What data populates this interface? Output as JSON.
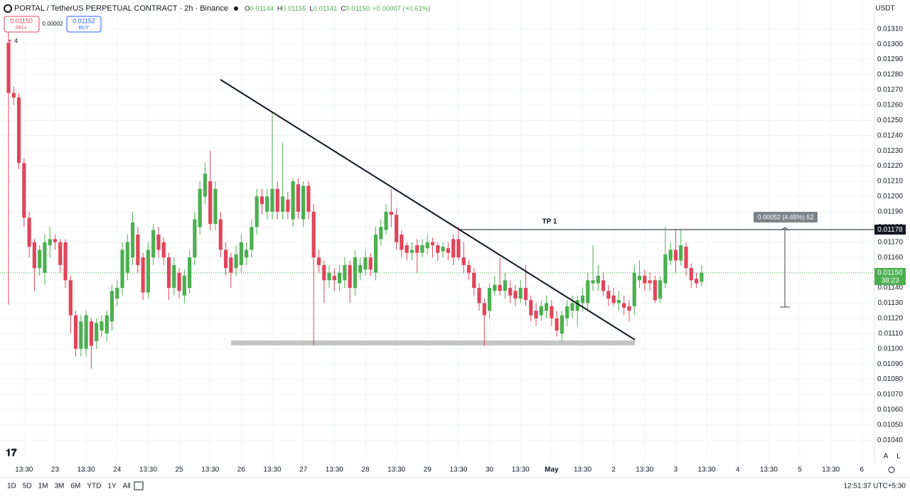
{
  "header": {
    "ohlc": [
      {
        "k": "O",
        "v": "0.01144"
      },
      {
        "k": "H",
        "v": "0.01155"
      },
      {
        "k": "L",
        "v": "0.01141"
      },
      {
        "k": "C",
        "v": "0.01150"
      }
    ],
    "change": "+0.00007 (+0.61%)",
    "sell_price": "0.01150",
    "sell": "SELL",
    "spread": "0.00002",
    "buy_price": "0.01152",
    "buy": "BUY",
    "indicator_count": "4",
    "currency": "USDT"
  },
  "toolbar": {
    "ranges": [
      "1D",
      "5D",
      "1M",
      "3M",
      "6M",
      "YTD",
      "1Y",
      "All"
    ],
    "clock": "12:51:37 UTC+5:30",
    "auto": "A",
    "log": "L"
  },
  "annotations": {
    "tp_label": "TP 1",
    "measure_label": "0.00052 (4.65%) 52",
    "tp_price": "0.01178",
    "last_price": "0.01150",
    "countdown": "38:23"
  },
  "chart_data": {
    "type": "candlestick",
    "title": "PORTAL / TetherUS PERPETUAL CONTRACT · 2h · Binance",
    "up_color": "#4caf50",
    "down_color": "#e0455a",
    "grid": true,
    "xlim": [
      -1.65,
      166.74
    ],
    "ylim": [
      0.01028,
      0.01329
    ],
    "yticks": [
      {
        "value": 0.0104,
        "label": "0.01040"
      },
      {
        "value": 0.0105,
        "label": "0.01050"
      },
      {
        "value": 0.0106,
        "label": "0.01060"
      },
      {
        "value": 0.0107,
        "label": "0.01070"
      },
      {
        "value": 0.0108,
        "label": "0.01080"
      },
      {
        "value": 0.0109,
        "label": "0.01090"
      },
      {
        "value": 0.011,
        "label": "0.01100"
      },
      {
        "value": 0.0111,
        "label": "0.01110"
      },
      {
        "value": 0.0112,
        "label": "0.01120"
      },
      {
        "value": 0.0113,
        "label": "0.01130"
      },
      {
        "value": 0.0114,
        "label": "0.01140"
      },
      {
        "value": 0.0115,
        "label": "0.01150"
      },
      {
        "value": 0.0116,
        "label": "0.01160"
      },
      {
        "value": 0.0117,
        "label": "0.01170"
      },
      {
        "value": 0.0118,
        "label": "0.01180"
      },
      {
        "value": 0.0119,
        "label": "0.01190"
      },
      {
        "value": 0.012,
        "label": "0.01200"
      },
      {
        "value": 0.0121,
        "label": "0.01210"
      },
      {
        "value": 0.0122,
        "label": "0.01220"
      },
      {
        "value": 0.0123,
        "label": "0.01230"
      },
      {
        "value": 0.0124,
        "label": "0.01240"
      },
      {
        "value": 0.0125,
        "label": "0.01250"
      },
      {
        "value": 0.0126,
        "label": "0.01260"
      },
      {
        "value": 0.0127,
        "label": "0.01270"
      },
      {
        "value": 0.0128,
        "label": "0.01280"
      },
      {
        "value": 0.0129,
        "label": "0.01290"
      },
      {
        "value": 0.013,
        "label": "0.01300"
      },
      {
        "value": 0.0131,
        "label": "0.01310"
      }
    ],
    "xticks": [
      {
        "value": 3,
        "label": "13:30"
      },
      {
        "value": 9,
        "label": "23"
      },
      {
        "value": 15,
        "label": "13:30"
      },
      {
        "value": 21,
        "label": "24"
      },
      {
        "value": 27,
        "label": "13:30"
      },
      {
        "value": 33,
        "label": "25"
      },
      {
        "value": 39,
        "label": "13:30"
      },
      {
        "value": 45,
        "label": "26"
      },
      {
        "value": 51,
        "label": "13:30"
      },
      {
        "value": 57,
        "label": "27"
      },
      {
        "value": 63,
        "label": "13:30"
      },
      {
        "value": 69,
        "label": "28"
      },
      {
        "value": 75,
        "label": "13:30"
      },
      {
        "value": 81,
        "label": "29"
      },
      {
        "value": 87,
        "label": "13:30"
      },
      {
        "value": 93,
        "label": "30"
      },
      {
        "value": 99,
        "label": "13:30"
      },
      {
        "value": 105,
        "label": "May"
      },
      {
        "value": 111,
        "label": "13:30"
      },
      {
        "value": 117,
        "label": "2"
      },
      {
        "value": 123,
        "label": "13:30"
      },
      {
        "value": 129,
        "label": "3"
      },
      {
        "value": 135,
        "label": "13:30"
      },
      {
        "value": 141,
        "label": "4"
      },
      {
        "value": 147,
        "label": "13:30"
      },
      {
        "value": 153,
        "label": "5"
      },
      {
        "value": 159,
        "label": "13:30"
      },
      {
        "value": 165,
        "label": "6"
      }
    ],
    "ohlc": [
      [
        0.01301,
        0.0131,
        0.01129,
        0.01268
      ],
      [
        0.01268,
        0.01272,
        0.0126,
        0.01265
      ],
      [
        0.01265,
        0.01268,
        0.01218,
        0.01222
      ],
      [
        0.01222,
        0.01225,
        0.0118,
        0.01186
      ],
      [
        0.01186,
        0.0119,
        0.0116,
        0.01167
      ],
      [
        0.0117,
        0.01172,
        0.01138,
        0.01153
      ],
      [
        0.01153,
        0.01168,
        0.01148,
        0.01165
      ],
      [
        0.0115,
        0.01175,
        0.01142,
        0.0117
      ],
      [
        0.01168,
        0.0118,
        0.0116,
        0.01172
      ],
      [
        0.01172,
        0.01175,
        0.01165,
        0.0117
      ],
      [
        0.0117,
        0.01172,
        0.0115,
        0.01155
      ],
      [
        0.0117,
        0.01172,
        0.0114,
        0.01145
      ],
      [
        0.01145,
        0.01148,
        0.0111,
        0.01122
      ],
      [
        0.01122,
        0.01125,
        0.01095,
        0.011
      ],
      [
        0.011,
        0.01122,
        0.01095,
        0.01118
      ],
      [
        0.011,
        0.01125,
        0.01095,
        0.01122
      ],
      [
        0.01118,
        0.0112,
        0.01087,
        0.01102
      ],
      [
        0.01105,
        0.0112,
        0.011,
        0.01117
      ],
      [
        0.01112,
        0.01122,
        0.01108,
        0.01118
      ],
      [
        0.0111,
        0.01125,
        0.01105,
        0.01122
      ],
      [
        0.01118,
        0.01142,
        0.01112,
        0.01138
      ],
      [
        0.01133,
        0.01145,
        0.01128,
        0.0114
      ],
      [
        0.0114,
        0.0117,
        0.01135,
        0.01165
      ],
      [
        0.0115,
        0.01175,
        0.01145,
        0.0117
      ],
      [
        0.0116,
        0.0119,
        0.01155,
        0.01183
      ],
      [
        0.01175,
        0.0118,
        0.0115,
        0.01155
      ],
      [
        0.0116,
        0.01163,
        0.01132,
        0.01137
      ],
      [
        0.01137,
        0.0117,
        0.01133,
        0.01165
      ],
      [
        0.0116,
        0.01182,
        0.01155,
        0.01178
      ],
      [
        0.01175,
        0.0118,
        0.0116,
        0.01165
      ],
      [
        0.0117,
        0.01173,
        0.01155,
        0.0116
      ],
      [
        0.0116,
        0.01163,
        0.01132,
        0.0114
      ],
      [
        0.0114,
        0.0116,
        0.01135,
        0.01155
      ],
      [
        0.0115,
        0.01153,
        0.01133,
        0.01138
      ],
      [
        0.01135,
        0.01152,
        0.0113,
        0.01148
      ],
      [
        0.0114,
        0.01165,
        0.01136,
        0.0116
      ],
      [
        0.0116,
        0.0119,
        0.01155,
        0.01185
      ],
      [
        0.0118,
        0.0121,
        0.01175,
        0.01205
      ],
      [
        0.012,
        0.01222,
        0.01195,
        0.01215
      ],
      [
        0.0121,
        0.0123,
        0.01178,
        0.01182
      ],
      [
        0.01182,
        0.0121,
        0.01178,
        0.01205
      ],
      [
        0.01185,
        0.0119,
        0.0116,
        0.01165
      ],
      [
        0.01165,
        0.0117,
        0.01148,
        0.01153
      ],
      [
        0.0116,
        0.01163,
        0.0114,
        0.0115
      ],
      [
        0.01153,
        0.01168,
        0.01148,
        0.01162
      ],
      [
        0.01155,
        0.01175,
        0.0115,
        0.0117
      ],
      [
        0.0116,
        0.0117,
        0.01155,
        0.01165
      ],
      [
        0.01165,
        0.01185,
        0.0116,
        0.0118
      ],
      [
        0.0118,
        0.01205,
        0.01175,
        0.012
      ],
      [
        0.012,
        0.01205,
        0.01188,
        0.01195
      ],
      [
        0.0119,
        0.01205,
        0.01185,
        0.012
      ],
      [
        0.0119,
        0.01255,
        0.01185,
        0.01205
      ],
      [
        0.01205,
        0.0121,
        0.01185,
        0.0119
      ],
      [
        0.0119,
        0.01235,
        0.01185,
        0.012
      ],
      [
        0.01198,
        0.01203,
        0.01185,
        0.0119
      ],
      [
        0.01185,
        0.01212,
        0.0118,
        0.0121
      ],
      [
        0.01208,
        0.01212,
        0.01185,
        0.0119
      ],
      [
        0.01185,
        0.0121,
        0.0118,
        0.01207
      ],
      [
        0.01207,
        0.0121,
        0.01185,
        0.0119
      ],
      [
        0.0119,
        0.01195,
        0.01102,
        0.0116
      ],
      [
        0.0116,
        0.01165,
        0.0115,
        0.01155
      ],
      [
        0.01155,
        0.01158,
        0.0113,
        0.01145
      ],
      [
        0.01145,
        0.01155,
        0.0114,
        0.0115
      ],
      [
        0.01148,
        0.01153,
        0.01138,
        0.01145
      ],
      [
        0.01143,
        0.01155,
        0.01138,
        0.0115
      ],
      [
        0.01145,
        0.0116,
        0.0114,
        0.01155
      ],
      [
        0.01155,
        0.01158,
        0.0113,
        0.0114
      ],
      [
        0.0114,
        0.01165,
        0.01135,
        0.0116
      ],
      [
        0.0115,
        0.0116,
        0.01145,
        0.01155
      ],
      [
        0.01152,
        0.01165,
        0.01148,
        0.0116
      ],
      [
        0.0116,
        0.01163,
        0.01148,
        0.01152
      ],
      [
        0.0115,
        0.0118,
        0.01145,
        0.01175
      ],
      [
        0.01172,
        0.01185,
        0.01168,
        0.0118
      ],
      [
        0.01178,
        0.01195,
        0.01175,
        0.0119
      ],
      [
        0.0119,
        0.01205,
        0.0118,
        0.01188
      ],
      [
        0.01188,
        0.01192,
        0.01165,
        0.0117
      ],
      [
        0.01175,
        0.01178,
        0.0116,
        0.01165
      ],
      [
        0.01168,
        0.0117,
        0.01158,
        0.01163
      ],
      [
        0.01163,
        0.0117,
        0.01158,
        0.01165
      ],
      [
        0.01168,
        0.01172,
        0.0115,
        0.01163
      ],
      [
        0.01163,
        0.01172,
        0.0116,
        0.01168
      ],
      [
        0.01166,
        0.01175,
        0.01162,
        0.0117
      ],
      [
        0.0117,
        0.01173,
        0.0116,
        0.01168
      ],
      [
        0.01168,
        0.0117,
        0.01158,
        0.01163
      ],
      [
        0.01164,
        0.0117,
        0.0116,
        0.01167
      ],
      [
        0.01166,
        0.0117,
        0.01158,
        0.01163
      ],
      [
        0.01172,
        0.01175,
        0.01155,
        0.0116
      ],
      [
        0.01172,
        0.0118,
        0.01158,
        0.0116
      ],
      [
        0.0116,
        0.0117,
        0.0115,
        0.01155
      ],
      [
        0.01155,
        0.01158,
        0.01145,
        0.0115
      ],
      [
        0.0115,
        0.01153,
        0.01135,
        0.0114
      ],
      [
        0.0114,
        0.01143,
        0.01125,
        0.0113
      ],
      [
        0.0113,
        0.01133,
        0.01102,
        0.01122
      ],
      [
        0.01125,
        0.01143,
        0.0112,
        0.0114
      ],
      [
        0.01138,
        0.01148,
        0.01135,
        0.01142
      ],
      [
        0.01142,
        0.0116,
        0.01135,
        0.01138
      ],
      [
        0.01138,
        0.0115,
        0.01133,
        0.01145
      ],
      [
        0.0114,
        0.01145,
        0.0113,
        0.01135
      ],
      [
        0.01138,
        0.01142,
        0.01128,
        0.01133
      ],
      [
        0.01133,
        0.01145,
        0.0113,
        0.0114
      ],
      [
        0.0114,
        0.01155,
        0.01128,
        0.01132
      ],
      [
        0.01132,
        0.01135,
        0.01118,
        0.01122
      ],
      [
        0.01125,
        0.0113,
        0.01115,
        0.0112
      ],
      [
        0.01122,
        0.01132,
        0.01118,
        0.01128
      ],
      [
        0.01125,
        0.01135,
        0.0112,
        0.0113
      ],
      [
        0.01128,
        0.01132,
        0.01115,
        0.0112
      ],
      [
        0.0112,
        0.01125,
        0.01108,
        0.01112
      ],
      [
        0.0111,
        0.01125,
        0.01105,
        0.01122
      ],
      [
        0.0112,
        0.01132,
        0.01115,
        0.01128
      ],
      [
        0.01125,
        0.01135,
        0.0112,
        0.0113
      ],
      [
        0.01125,
        0.01135,
        0.01115,
        0.01132
      ],
      [
        0.0113,
        0.0114,
        0.01125,
        0.01135
      ],
      [
        0.0113,
        0.0115,
        0.01125,
        0.01145
      ],
      [
        0.01143,
        0.01168,
        0.01138,
        0.01145
      ],
      [
        0.01143,
        0.01155,
        0.01138,
        0.01148
      ],
      [
        0.01145,
        0.0115,
        0.01135,
        0.01138
      ],
      [
        0.01138,
        0.01142,
        0.01128,
        0.01133
      ],
      [
        0.01135,
        0.0114,
        0.01128,
        0.0113
      ],
      [
        0.0113,
        0.01138,
        0.01125,
        0.01132
      ],
      [
        0.0113,
        0.01135,
        0.01122,
        0.01127
      ],
      [
        0.01128,
        0.01132,
        0.01118,
        0.01125
      ],
      [
        0.01128,
        0.01155,
        0.01122,
        0.0115
      ],
      [
        0.01145,
        0.01158,
        0.0114,
        0.01148
      ],
      [
        0.01148,
        0.01152,
        0.01138,
        0.01143
      ],
      [
        0.01145,
        0.0115,
        0.01138,
        0.01143
      ],
      [
        0.01145,
        0.01148,
        0.0113,
        0.01132
      ],
      [
        0.01133,
        0.01148,
        0.0113,
        0.01145
      ],
      [
        0.01143,
        0.0118,
        0.0114,
        0.01162
      ],
      [
        0.01158,
        0.0117,
        0.01155,
        0.01165
      ],
      [
        0.01165,
        0.01178,
        0.0115,
        0.01158
      ],
      [
        0.01158,
        0.01178,
        0.01155,
        0.01168
      ],
      [
        0.01167,
        0.0117,
        0.01148,
        0.01153
      ],
      [
        0.01153,
        0.01156,
        0.0114,
        0.01145
      ],
      [
        0.01146,
        0.0115,
        0.0114,
        0.01143
      ],
      [
        0.01144,
        0.01155,
        0.01141,
        0.0115
      ]
    ]
  }
}
